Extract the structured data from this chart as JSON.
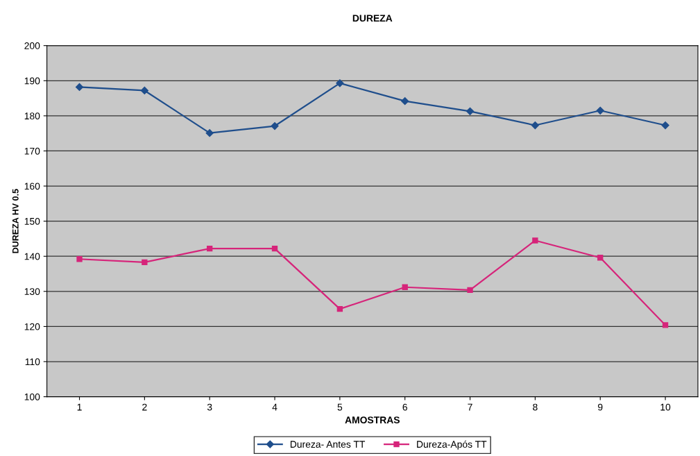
{
  "chart_data": {
    "type": "line",
    "title": "DUREZA",
    "xlabel": "AMOSTRAS",
    "ylabel": "DUREZA HV 0.5",
    "categories": [
      "1",
      "2",
      "3",
      "4",
      "5",
      "6",
      "7",
      "8",
      "9",
      "10"
    ],
    "series": [
      {
        "name": "Dureza- Antes TT",
        "color": "#1f4e8c",
        "marker": "diamond",
        "values": [
          188.2,
          187.2,
          175.1,
          177.1,
          189.3,
          184.2,
          181.3,
          177.3,
          181.5,
          177.3
        ]
      },
      {
        "name": "Dureza-Após TT",
        "color": "#d6247a",
        "marker": "square",
        "values": [
          139.2,
          138.3,
          142.2,
          142.2,
          125.0,
          131.2,
          130.4,
          144.5,
          139.6,
          120.4
        ]
      }
    ],
    "ylim": [
      100,
      200
    ],
    "yticks": [
      100,
      110,
      120,
      130,
      140,
      150,
      160,
      170,
      180,
      190,
      200
    ],
    "grid": "y",
    "legend": "bottom",
    "line_style": "solid"
  }
}
